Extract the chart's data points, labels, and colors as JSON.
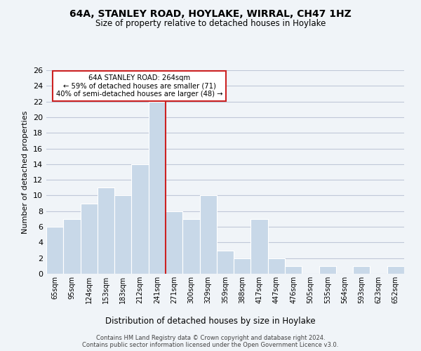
{
  "title": "64A, STANLEY ROAD, HOYLAKE, WIRRAL, CH47 1HZ",
  "subtitle": "Size of property relative to detached houses in Hoylake",
  "xlabel": "Distribution of detached houses by size in Hoylake",
  "ylabel": "Number of detached properties",
  "bin_labels": [
    "65sqm",
    "95sqm",
    "124sqm",
    "153sqm",
    "183sqm",
    "212sqm",
    "241sqm",
    "271sqm",
    "300sqm",
    "329sqm",
    "359sqm",
    "388sqm",
    "417sqm",
    "447sqm",
    "476sqm",
    "505sqm",
    "535sqm",
    "564sqm",
    "593sqm",
    "623sqm",
    "652sqm"
  ],
  "counts": [
    6,
    7,
    9,
    11,
    10,
    14,
    22,
    8,
    7,
    10,
    3,
    2,
    7,
    2,
    1,
    0,
    1,
    0,
    1,
    0,
    1
  ],
  "bar_color": "#c8d8e8",
  "bar_edge_color": "#ffffff",
  "grid_color": "#c0c8d8",
  "property_line_x": 6.5,
  "property_label": "64A STANLEY ROAD: 264sqm",
  "annotation_line1": "← 59% of detached houses are smaller (71)",
  "annotation_line2": "40% of semi-detached houses are larger (48) →",
  "annotation_box_color": "#ffffff",
  "annotation_box_edge": "#cc2222",
  "vline_color": "#cc2222",
  "ylim": [
    0,
    26
  ],
  "yticks": [
    0,
    2,
    4,
    6,
    8,
    10,
    12,
    14,
    16,
    18,
    20,
    22,
    24,
    26
  ],
  "footer1": "Contains HM Land Registry data © Crown copyright and database right 2024.",
  "footer2": "Contains public sector information licensed under the Open Government Licence v3.0.",
  "background_color": "#f0f4f8"
}
